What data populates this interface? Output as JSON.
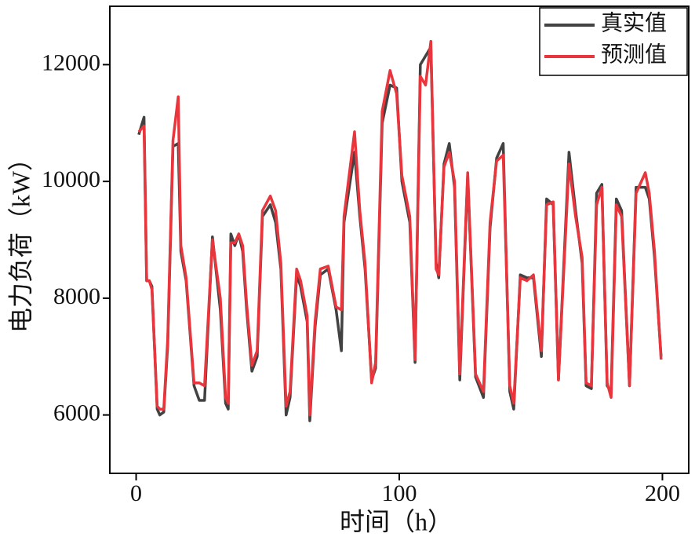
{
  "chart_data": {
    "type": "line",
    "xlabel": "时间（h）",
    "ylabel": "电力负荷（kW）",
    "x": [
      1,
      3,
      4,
      5,
      6,
      8,
      9,
      10.5,
      12,
      14,
      16,
      17,
      19,
      22,
      24,
      26,
      29,
      32,
      34,
      35,
      36,
      37.5,
      39,
      40.5,
      42,
      44,
      46,
      48,
      51,
      53,
      55,
      57,
      58.5,
      61,
      62.5,
      65,
      66,
      68,
      70,
      73,
      76,
      78,
      79,
      83,
      85,
      87,
      89.5,
      91,
      93.5,
      96.5,
      99,
      101,
      104,
      106,
      108,
      110,
      112,
      114,
      115,
      117,
      119,
      121,
      123,
      126,
      129,
      132,
      134.5,
      137,
      139.5,
      142,
      143.5,
      146,
      148.5,
      151,
      154,
      156,
      158.5,
      160.5,
      164.5,
      167,
      169.5,
      171,
      173,
      175,
      177,
      179,
      180.5,
      182.5,
      184.5,
      187.5,
      190,
      193.5,
      195,
      197,
      199.5
    ],
    "series": [
      {
        "name": "真实值",
        "color": "#424242",
        "values": [
          10800,
          11100,
          8300,
          8300,
          8200,
          6100,
          6000,
          6050,
          7200,
          10600,
          10650,
          8800,
          8300,
          6500,
          6250,
          6250,
          9050,
          7800,
          6200,
          6100,
          9100,
          8900,
          9100,
          8800,
          7800,
          6750,
          7000,
          9400,
          9600,
          9300,
          8500,
          6000,
          6300,
          8400,
          8200,
          7600,
          5900,
          7500,
          8400,
          8500,
          7800,
          7100,
          9300,
          10500,
          9400,
          8500,
          6600,
          6800,
          11000,
          11650,
          11600,
          10000,
          9300,
          6900,
          12000,
          12150,
          12300,
          8600,
          8350,
          10300,
          10650,
          9900,
          6600,
          10100,
          6650,
          6300,
          9200,
          10400,
          10650,
          6400,
          6100,
          8400,
          8350,
          8350,
          7000,
          9700,
          9600,
          6600,
          10500,
          9500,
          8600,
          6500,
          6450,
          9800,
          9950,
          6500,
          6400,
          9700,
          9500,
          6500,
          9900,
          9900,
          9700,
          8700,
          7000
        ]
      },
      {
        "name": "预测值",
        "color": "#e8363c",
        "values": [
          10850,
          10950,
          8300,
          8300,
          8150,
          6150,
          6100,
          6100,
          7300,
          10700,
          11450,
          8900,
          8350,
          6550,
          6550,
          6500,
          9000,
          8000,
          6300,
          6200,
          8950,
          8950,
          9100,
          8900,
          7900,
          6850,
          7100,
          9500,
          9750,
          9500,
          8600,
          6150,
          6400,
          8500,
          8300,
          7700,
          6000,
          7600,
          8500,
          8550,
          7850,
          7800,
          9400,
          10850,
          9500,
          8600,
          6550,
          6900,
          11200,
          11900,
          11500,
          10100,
          9400,
          6950,
          11800,
          11650,
          12400,
          8500,
          8400,
          10250,
          10500,
          10000,
          6700,
          10150,
          6700,
          6400,
          9300,
          10350,
          10450,
          6500,
          6200,
          8350,
          8300,
          8400,
          7100,
          9600,
          9650,
          6600,
          10300,
          9400,
          8700,
          6550,
          6500,
          9600,
          9900,
          6550,
          6300,
          9600,
          9400,
          6500,
          9800,
          10150,
          9800,
          8800,
          6950
        ]
      }
    ],
    "xlim": [
      -10,
      210
    ],
    "ylim": [
      5000,
      13000
    ],
    "xticks": [
      0,
      100,
      200
    ],
    "yticks": [
      6000,
      8000,
      10000,
      12000
    ],
    "legend": "upper right"
  }
}
